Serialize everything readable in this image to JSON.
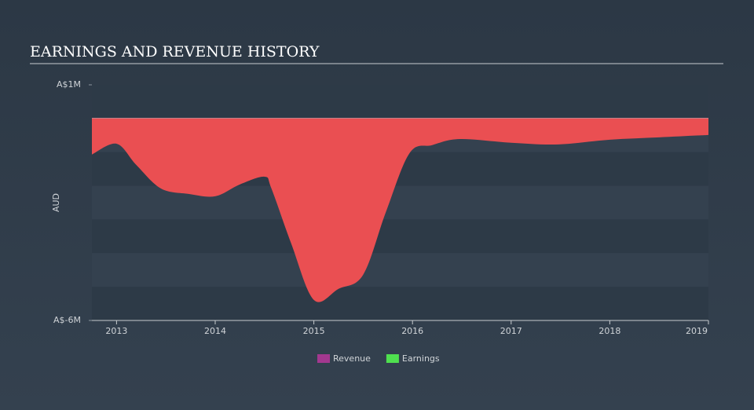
{
  "chart_data": {
    "type": "area",
    "title": "EARNINGS AND REVENUE HISTORY",
    "y_label": "AUD",
    "x": [
      2012.75,
      2013.0,
      2013.2,
      2013.45,
      2013.73,
      2014.0,
      2014.25,
      2014.5,
      2014.57,
      2014.77,
      2015.0,
      2015.25,
      2015.5,
      2015.73,
      2015.97,
      2016.2,
      2016.48,
      2017.0,
      2017.48,
      2018.0,
      2018.5,
      2019.0
    ],
    "series": [
      {
        "name": "Revenue",
        "color": "#a3388f",
        "values": [
          0,
          0,
          0,
          0,
          0,
          0,
          0,
          0,
          0,
          0,
          0,
          0,
          0,
          0,
          0,
          0,
          0,
          0,
          0,
          0,
          0,
          0
        ]
      },
      {
        "name": "Earnings",
        "color": "#4fe04f",
        "values": [
          -1070000,
          -750000,
          -1380000,
          -2080000,
          -2240000,
          -2310000,
          -1960000,
          -1730000,
          -2080000,
          -3710000,
          -5390000,
          -5060000,
          -4640000,
          -2780000,
          -1030000,
          -790000,
          -610000,
          -720000,
          -770000,
          -630000,
          -560000,
          -490000
        ]
      }
    ],
    "negative_color": "#ea4f52",
    "xlim": [
      2012.75,
      2019.0
    ],
    "xticks": [
      2013,
      2014,
      2015,
      2016,
      2017,
      2018,
      2019
    ],
    "ylim": [
      -6000000,
      1000000
    ],
    "yticks": [
      {
        "value": 1000000,
        "label": "A$1M"
      },
      {
        "value": -6000000,
        "label": "A$-6M"
      }
    ],
    "legend": "bottom"
  }
}
